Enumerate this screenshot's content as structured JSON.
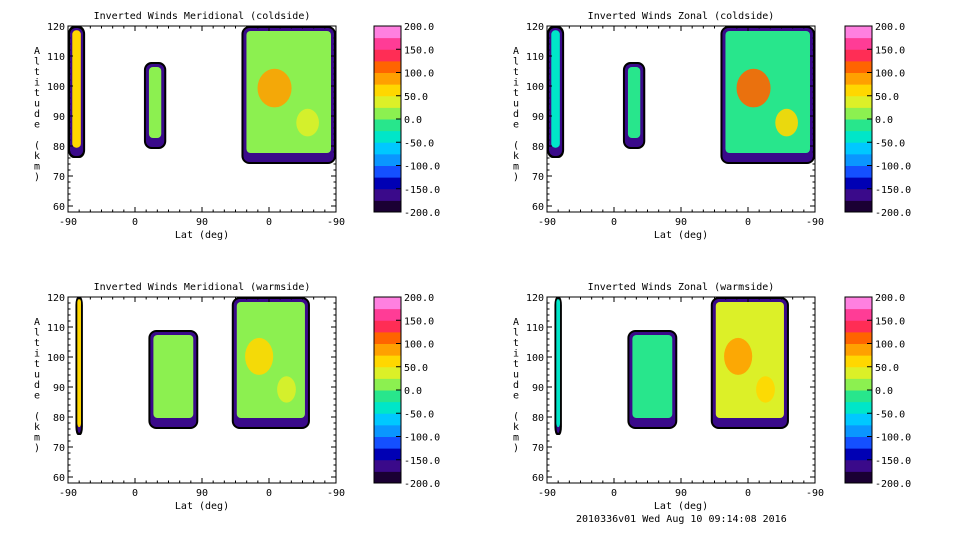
{
  "footer": "2010336v01 Wed Aug 10 09:14:08 2016",
  "colorscale": [
    "#1a0033",
    "#3a0a8a",
    "#0000b4",
    "#1450ff",
    "#0a96ff",
    "#00c8ff",
    "#00e6c8",
    "#28e68c",
    "#8cf050",
    "#dcf028",
    "#ffd700",
    "#ffa000",
    "#ff6400",
    "#ff2d55",
    "#ff3c96",
    "#ff80e0"
  ],
  "chart_data": [
    {
      "type": "heatmap",
      "title": "Inverted Winds Meridional (coldside)",
      "xlabel": "Lat (deg)",
      "ylabel": "Altitude (km)",
      "xticks": [
        "-90",
        "0",
        "90",
        "0",
        "-90"
      ],
      "yticks": [
        "60",
        "70",
        "80",
        "90",
        "100",
        "110",
        "120"
      ],
      "ylim": [
        58,
        120
      ],
      "colorbar": {
        "min": -200,
        "max": 200,
        "labels": [
          "200.0",
          "150.0",
          "100.0",
          "50.0",
          "0.0",
          "-50.0",
          "-100.0",
          "-150.0",
          "-200.0"
        ]
      },
      "regions": [
        {
          "x": [
            -90,
            -67
          ],
          "y": [
            76,
            120
          ],
          "value": 70,
          "edge": -160
        },
        {
          "x": [
            12,
            42
          ],
          "y": [
            79,
            108
          ],
          "value": 20,
          "edge": -160
        },
        {
          "x": [
            143,
            270
          ],
          "y": [
            74,
            120
          ],
          "value": 10,
          "edge": -170,
          "hot_spot": 80
        }
      ]
    },
    {
      "type": "heatmap",
      "title": "Inverted Winds Zonal (coldside)",
      "xlabel": "Lat (deg)",
      "ylabel": "Altitude (km)",
      "xticks": [
        "-90",
        "0",
        "90",
        "0",
        "-90"
      ],
      "yticks": [
        "60",
        "70",
        "80",
        "90",
        "100",
        "110",
        "120"
      ],
      "ylim": [
        58,
        120
      ],
      "colorbar": {
        "min": -200,
        "max": 200,
        "labels": [
          "200.0",
          "150.0",
          "100.0",
          "50.0",
          "0.0",
          "-50.0",
          "-100.0",
          "-150.0",
          "-200.0"
        ]
      },
      "regions": [
        {
          "x": [
            -90,
            -67
          ],
          "y": [
            76,
            120
          ],
          "value": -40,
          "edge": -160
        },
        {
          "x": [
            12,
            42
          ],
          "y": [
            79,
            108
          ],
          "value": -20,
          "edge": -160
        },
        {
          "x": [
            143,
            270
          ],
          "y": [
            74,
            120
          ],
          "value": -10,
          "edge": -170,
          "hot_spot": 120
        }
      ]
    },
    {
      "type": "heatmap",
      "title": "Inverted Winds Meridional (warmside)",
      "xlabel": "Lat (deg)",
      "ylabel": "Altitude (km)",
      "xticks": [
        "-90",
        "0",
        "90",
        "0",
        "-90"
      ],
      "yticks": [
        "60",
        "70",
        "80",
        "90",
        "100",
        "110",
        "120"
      ],
      "ylim": [
        58,
        120
      ],
      "colorbar": {
        "min": -200,
        "max": 200,
        "labels": [
          "200.0",
          "150.0",
          "100.0",
          "50.0",
          "0.0",
          "-50.0",
          "-100.0",
          "-150.0",
          "-200.0"
        ]
      },
      "regions": [
        {
          "x": [
            -80,
            -70
          ],
          "y": [
            74,
            120
          ],
          "value": 60,
          "edge": -160
        },
        {
          "x": [
            18,
            85
          ],
          "y": [
            76,
            109
          ],
          "value": 0,
          "edge": -160
        },
        {
          "x": [
            130,
            235
          ],
          "y": [
            76,
            120
          ],
          "value": 20,
          "edge": -170,
          "hot_spot": 70
        }
      ]
    },
    {
      "type": "heatmap",
      "title": "Inverted Winds Zonal (warmside)",
      "xlabel": "Lat (deg)",
      "ylabel": "Altitude (km)",
      "xticks": [
        "-90",
        "0",
        "90",
        "0",
        "-90"
      ],
      "yticks": [
        "60",
        "70",
        "80",
        "90",
        "100",
        "110",
        "120"
      ],
      "ylim": [
        58,
        120
      ],
      "colorbar": {
        "min": -200,
        "max": 200,
        "labels": [
          "200.0",
          "150.0",
          "100.0",
          "50.0",
          "0.0",
          "-50.0",
          "-100.0",
          "-150.0",
          "-200.0"
        ]
      },
      "regions": [
        {
          "x": [
            -80,
            -70
          ],
          "y": [
            74,
            120
          ],
          "value": -40,
          "edge": -160
        },
        {
          "x": [
            18,
            85
          ],
          "y": [
            76,
            109
          ],
          "value": -20,
          "edge": -160
        },
        {
          "x": [
            130,
            235
          ],
          "y": [
            76,
            120
          ],
          "value": 30,
          "edge": -170,
          "hot_spot": 90
        }
      ]
    }
  ]
}
